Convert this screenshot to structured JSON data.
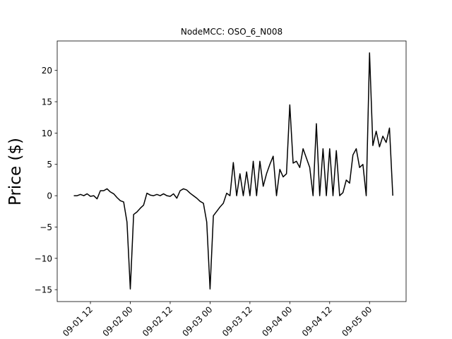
{
  "chart_data": {
    "type": "line",
    "title": "NodeMCC: OSO_6_N008",
    "ylabel": "Price ($)",
    "color": "#000000",
    "x": [
      "09-01 07",
      "09-01 08",
      "09-01 09",
      "09-01 10",
      "09-01 11",
      "09-01 12",
      "09-01 13",
      "09-01 14",
      "09-01 15",
      "09-01 16",
      "09-01 17",
      "09-01 18",
      "09-01 19",
      "09-01 20",
      "09-01 21",
      "09-01 22",
      "09-01 23",
      "09-02 00",
      "09-02 01",
      "09-02 02",
      "09-02 03",
      "09-02 04",
      "09-02 05",
      "09-02 06",
      "09-02 07",
      "09-02 08",
      "09-02 09",
      "09-02 10",
      "09-02 11",
      "09-02 12",
      "09-02 13",
      "09-02 14",
      "09-02 15",
      "09-02 16",
      "09-02 17",
      "09-02 18",
      "09-02 19",
      "09-02 20",
      "09-02 21",
      "09-02 22",
      "09-02 23",
      "09-03 00",
      "09-03 01",
      "09-03 02",
      "09-03 03",
      "09-03 04",
      "09-03 05",
      "09-03 06",
      "09-03 07",
      "09-03 08",
      "09-03 09",
      "09-03 10",
      "09-03 11",
      "09-03 12",
      "09-03 13",
      "09-03 14",
      "09-03 15",
      "09-03 16",
      "09-03 17",
      "09-03 18",
      "09-03 19",
      "09-03 20",
      "09-03 21",
      "09-03 22",
      "09-03 23",
      "09-04 00",
      "09-04 01",
      "09-04 02",
      "09-04 03",
      "09-04 04",
      "09-04 05",
      "09-04 06",
      "09-04 07",
      "09-04 08",
      "09-04 09",
      "09-04 10",
      "09-04 11",
      "09-04 12",
      "09-04 13",
      "09-04 14",
      "09-04 15",
      "09-04 16",
      "09-04 17",
      "09-04 18",
      "09-04 19",
      "09-04 20",
      "09-04 21",
      "09-04 22",
      "09-04 23",
      "09-05 00",
      "09-05 01",
      "09-05 02",
      "09-05 03",
      "09-05 04",
      "09-05 05",
      "09-05 06",
      "09-05 07"
    ],
    "values": [
      0,
      0,
      0.2,
      0,
      0.3,
      -0.1,
      0,
      -0.5,
      0.8,
      0.8,
      1.1,
      0.6,
      0.3,
      -0.3,
      -0.8,
      -1,
      -4.2,
      -14.9,
      -3,
      -2.6,
      -2,
      -1.5,
      0.4,
      0.1,
      0,
      0.2,
      0,
      0.3,
      0,
      -0.1,
      0.3,
      -0.4,
      0.8,
      1.1,
      0.9,
      0.4,
      0,
      -0.4,
      -0.9,
      -1.2,
      -4.2,
      -14.9,
      -3.2,
      -2.5,
      -1.8,
      -1.2,
      0.4,
      0,
      5.3,
      0,
      3.5,
      0,
      3.8,
      0,
      5.5,
      0,
      5.5,
      1.5,
      3.5,
      5,
      6.3,
      0,
      4.2,
      3,
      3.5,
      14.5,
      5.2,
      5.5,
      4.5,
      7.5,
      6,
      4.5,
      0,
      11.5,
      0,
      7.5,
      0,
      7.5,
      0,
      7.2,
      0,
      0.5,
      2.5,
      2,
      6.5,
      7.5,
      4.5,
      5,
      0,
      22.8,
      8,
      10.3,
      7.8,
      9.5,
      8.5,
      10.8,
      0
    ],
    "xlim": [
      "09-01 02",
      "09-05 11"
    ],
    "xticks": [
      "09-01 12",
      "09-02 00",
      "09-02 12",
      "09-03 00",
      "09-03 12",
      "09-04 00",
      "09-04 12",
      "09-05 00"
    ],
    "ylim": [
      -16.9,
      24.7
    ],
    "yticks": [
      {
        "value": -15,
        "label": "−15"
      },
      {
        "value": -10,
        "label": "−10"
      },
      {
        "value": -5,
        "label": "−5"
      },
      0,
      5,
      10,
      15,
      20
    ]
  }
}
